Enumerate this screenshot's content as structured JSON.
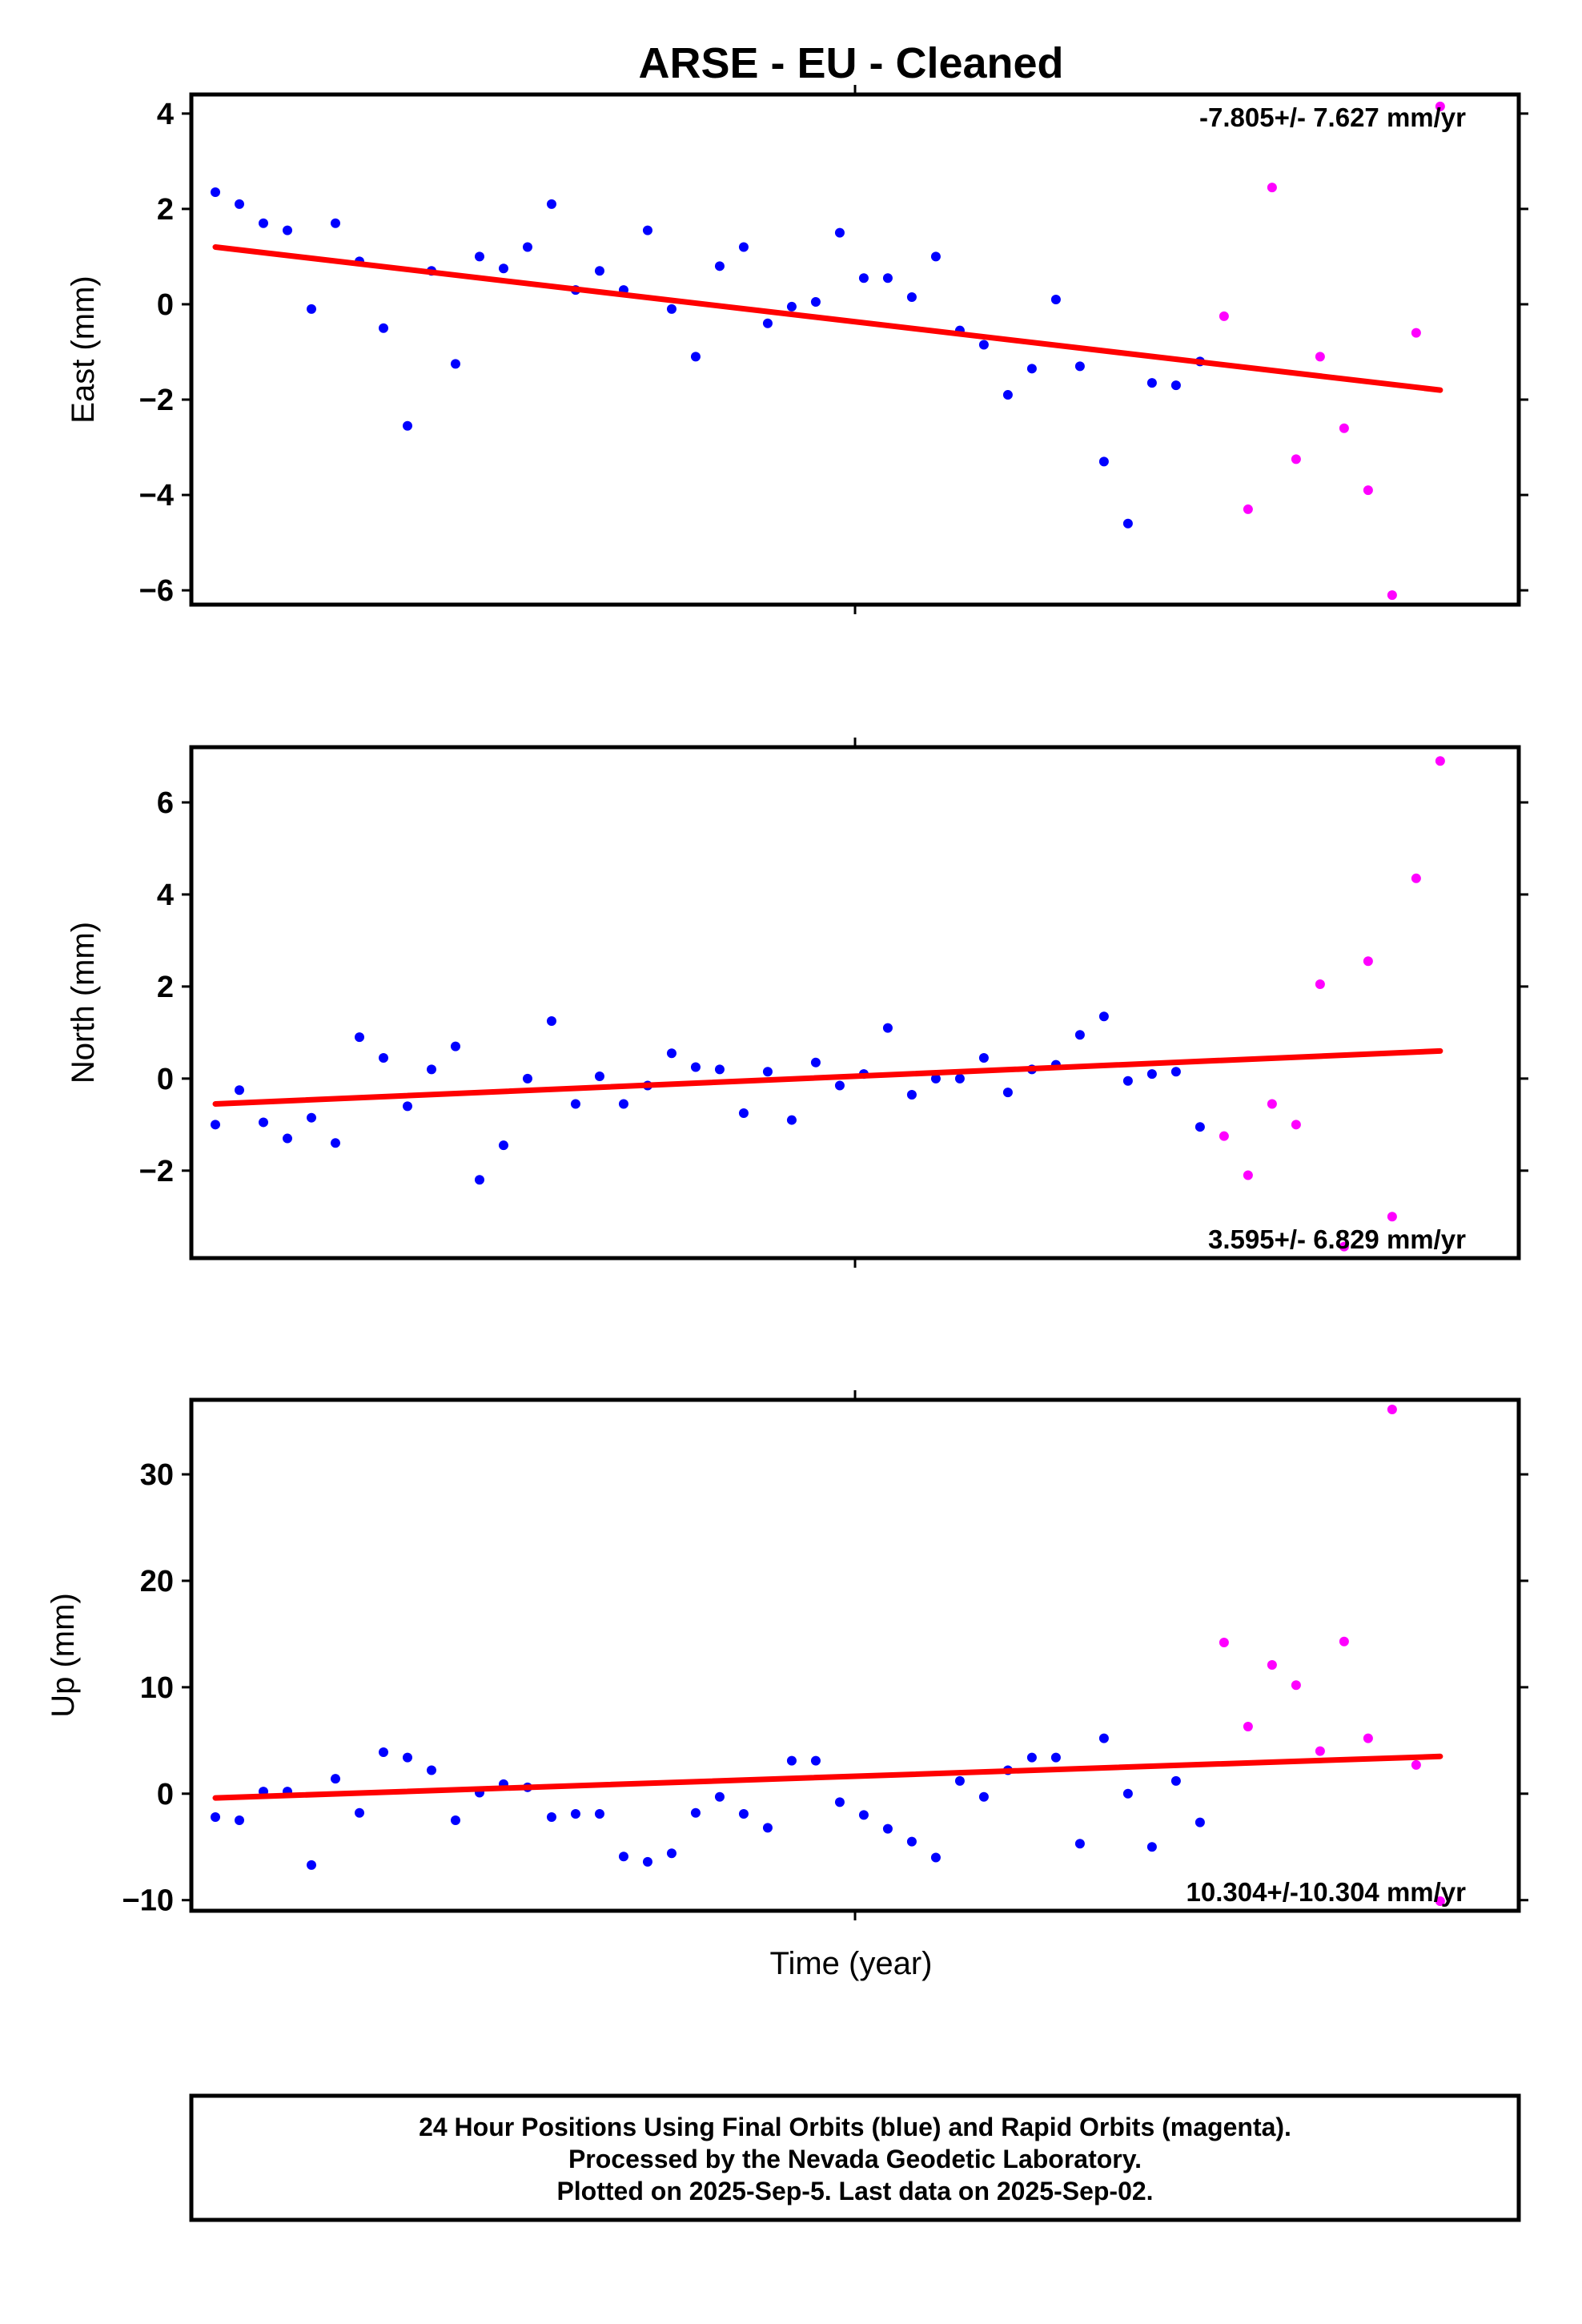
{
  "title": "ARSE  - EU - Cleaned",
  "xlabel": "Time (year)",
  "footer": {
    "line1": "24 Hour Positions Using Final Orbits (blue) and Rapid Orbits (magenta).",
    "line2": "Processed by the Nevada Geodetic Laboratory.",
    "line3": "Plotted on 2025-Sep-5. Last data on 2025-Sep-02."
  },
  "colors": {
    "final": "#0000ff",
    "rapid": "#ff00ff",
    "trend": "#ff0000",
    "frame": "#000000"
  },
  "chart_data": [
    {
      "type": "scatter",
      "ylabel": "East (mm)",
      "rate_label": "-7.805+/- 7.627 mm/yr",
      "rate_position": "top-right",
      "ylim": [
        -6.3,
        4.4
      ],
      "yticks": [
        4,
        2,
        0,
        -2,
        -4,
        -6
      ],
      "xlim": [
        0,
        54
      ],
      "trend": {
        "x": [
          0,
          51
        ],
        "y": [
          1.2,
          -1.8
        ]
      },
      "series": [
        {
          "kind": "final",
          "x": [
            0,
            1,
            2,
            3,
            4,
            5,
            6,
            7,
            8,
            9,
            10,
            11,
            12,
            13,
            14,
            15,
            16,
            17,
            18,
            19,
            20,
            21,
            22,
            23,
            24,
            25,
            26,
            27,
            28,
            29,
            30,
            31,
            32,
            33,
            34,
            35,
            36,
            37,
            38,
            39,
            40,
            41
          ],
          "y": [
            2.35,
            2.1,
            1.7,
            1.55,
            -0.1,
            1.7,
            0.9,
            -0.5,
            -2.55,
            0.7,
            -1.25,
            1.0,
            0.75,
            1.2,
            2.1,
            0.3,
            0.7,
            0.3,
            1.55,
            -0.1,
            -1.1,
            0.8,
            1.2,
            -0.4,
            -0.05,
            0.05,
            1.5,
            0.55,
            0.55,
            0.15,
            1.0,
            -0.55,
            -0.85,
            -1.9,
            -1.35,
            0.1,
            -1.3,
            -3.3,
            -4.6,
            -1.65,
            -1.7,
            -1.2
          ]
        },
        {
          "kind": "rapid",
          "x": [
            42,
            43,
            44,
            45,
            46,
            47,
            48,
            49,
            50,
            51
          ],
          "y": [
            -0.25,
            -4.3,
            2.45,
            -3.25,
            -1.1,
            -2.6,
            -3.9,
            -6.1,
            -0.6,
            4.15
          ]
        }
      ]
    },
    {
      "type": "scatter",
      "ylabel": "North (mm)",
      "rate_label": "3.595+/- 6.829 mm/yr",
      "rate_position": "bottom-right",
      "ylim": [
        -3.9,
        7.2
      ],
      "yticks": [
        6,
        4,
        2,
        0,
        -2
      ],
      "xlim": [
        0,
        54
      ],
      "trend": {
        "x": [
          0,
          51
        ],
        "y": [
          -0.55,
          0.6
        ]
      },
      "series": [
        {
          "kind": "final",
          "x": [
            0,
            1,
            2,
            3,
            4,
            5,
            6,
            7,
            8,
            9,
            10,
            11,
            12,
            13,
            14,
            15,
            16,
            17,
            18,
            19,
            20,
            21,
            22,
            23,
            24,
            25,
            26,
            27,
            28,
            29,
            30,
            31,
            32,
            33,
            34,
            35,
            36,
            37,
            38,
            39,
            40,
            41
          ],
          "y": [
            -1.0,
            -0.25,
            -0.95,
            -1.3,
            -0.85,
            -1.4,
            0.9,
            0.45,
            -0.6,
            0.2,
            0.7,
            -2.2,
            -1.45,
            0.0,
            1.25,
            -0.55,
            0.05,
            -0.55,
            -0.15,
            0.55,
            0.25,
            0.2,
            -0.75,
            0.15,
            -0.9,
            0.35,
            -0.15,
            0.1,
            1.1,
            -0.35,
            0.0,
            0.0,
            0.45,
            -0.3,
            0.2,
            0.3,
            0.95,
            1.35,
            -0.05,
            0.1,
            0.15,
            -1.05
          ]
        },
        {
          "kind": "rapid",
          "x": [
            42,
            43,
            44,
            45,
            46,
            47,
            48,
            49,
            50,
            51
          ],
          "y": [
            -1.25,
            -2.1,
            -0.55,
            -1.0,
            2.05,
            -3.65,
            2.55,
            -3.0,
            4.35,
            6.9
          ]
        }
      ]
    },
    {
      "type": "scatter",
      "ylabel": "Up (mm)",
      "rate_label": "10.304+/-10.304 mm/yr",
      "rate_position": "bottom-right",
      "ylim": [
        -11,
        37
      ],
      "yticks": [
        30,
        20,
        10,
        0,
        -10
      ],
      "xlim": [
        0,
        54
      ],
      "trend": {
        "x": [
          0,
          51
        ],
        "y": [
          -0.4,
          3.5
        ]
      },
      "series": [
        {
          "kind": "final",
          "x": [
            0,
            1,
            2,
            3,
            4,
            5,
            6,
            7,
            8,
            9,
            10,
            11,
            12,
            13,
            14,
            15,
            16,
            17,
            18,
            19,
            20,
            21,
            22,
            23,
            24,
            25,
            26,
            27,
            28,
            29,
            30,
            31,
            32,
            33,
            34,
            35,
            36,
            37,
            38,
            39,
            40,
            41
          ],
          "y": [
            -2.2,
            -2.5,
            0.2,
            0.2,
            -6.7,
            1.4,
            -1.8,
            3.9,
            3.4,
            2.2,
            -2.5,
            0.1,
            0.9,
            0.6,
            -2.2,
            -1.9,
            -1.9,
            -5.9,
            -6.4,
            -5.6,
            -1.8,
            -0.3,
            -1.9,
            -3.2,
            3.1,
            3.1,
            -0.8,
            -2.0,
            -3.3,
            -4.5,
            -6.0,
            1.2,
            -0.3,
            2.2,
            3.4,
            3.4,
            -4.7,
            5.2,
            0.0,
            -5.0,
            1.2,
            -2.7
          ]
        },
        {
          "kind": "rapid",
          "x": [
            42,
            43,
            44,
            45,
            46,
            47,
            48,
            49,
            50,
            51
          ],
          "y": [
            14.2,
            6.3,
            12.1,
            10.2,
            4.0,
            14.3,
            5.2,
            36.1,
            2.7,
            -10.1
          ]
        }
      ]
    }
  ]
}
